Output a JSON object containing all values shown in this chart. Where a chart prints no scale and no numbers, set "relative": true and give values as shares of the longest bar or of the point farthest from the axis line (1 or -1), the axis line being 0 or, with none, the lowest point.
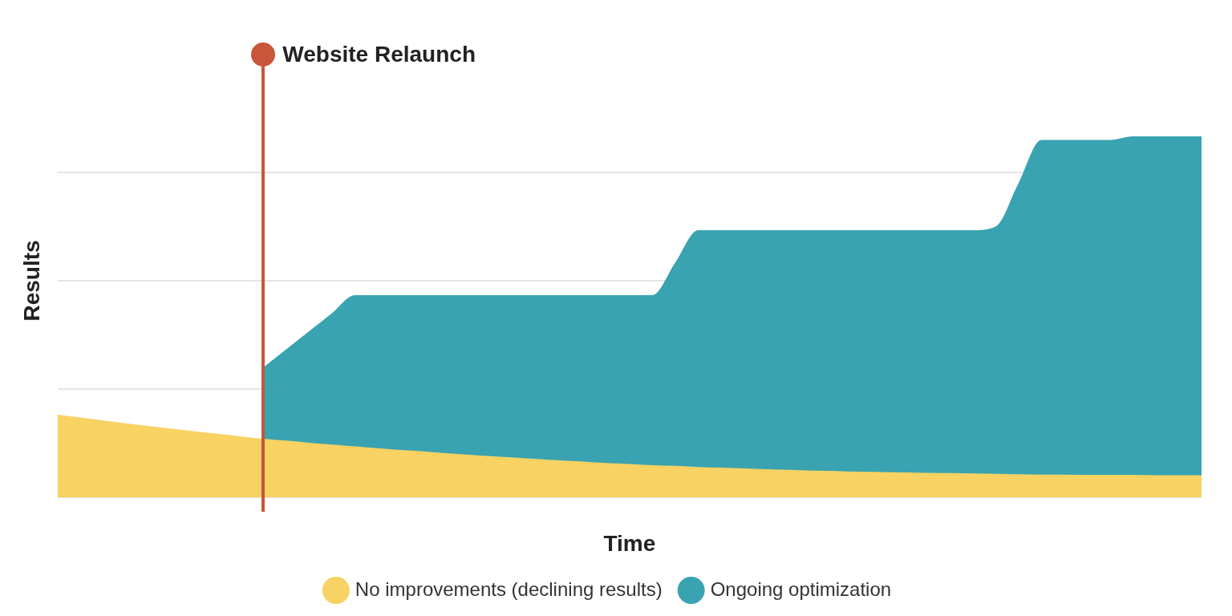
{
  "chart_data": {
    "type": "area",
    "xlabel": "Time",
    "ylabel": "Results",
    "relative": true,
    "grid": "y",
    "legend": "bottom",
    "categories": [
      null,
      null,
      null,
      null,
      null,
      null,
      null,
      null,
      null,
      null,
      null,
      null,
      null,
      null,
      null,
      null,
      null,
      null,
      null,
      null,
      null,
      null,
      null,
      null,
      null,
      null,
      null,
      null,
      null,
      null,
      null,
      null,
      null,
      null,
      null,
      null,
      null,
      null,
      null,
      null,
      null,
      null,
      null,
      null,
      null,
      null,
      null,
      null,
      null,
      null,
      null
    ],
    "series": [
      {
        "name": "No improvements (declining results)",
        "color": "#f8d262",
        "values": [
          0.229,
          0.221,
          0.213,
          0.205,
          0.197,
          0.19,
          0.183,
          0.176,
          0.169,
          0.162,
          0.157,
          0.151,
          0.146,
          0.141,
          0.136,
          0.131,
          0.127,
          0.122,
          0.118,
          0.114,
          0.11,
          0.106,
          0.102,
          0.099,
          0.095,
          0.092,
          0.089,
          0.087,
          0.084,
          0.082,
          0.08,
          0.078,
          0.076,
          0.074,
          0.073,
          0.071,
          0.07,
          0.069,
          0.068,
          0.067,
          0.066,
          0.065,
          0.064,
          0.063,
          0.063,
          0.062,
          0.062,
          0.062,
          0.061,
          0.061,
          0.061
        ]
      },
      {
        "name": "Ongoing optimization",
        "color": "#39a3b1",
        "values": [
          null,
          null,
          null,
          null,
          null,
          null,
          null,
          null,
          null,
          0.36,
          0.41,
          0.46,
          0.51,
          0.56,
          0.56,
          0.56,
          0.56,
          0.56,
          0.56,
          0.56,
          0.56,
          0.56,
          0.56,
          0.56,
          0.56,
          0.56,
          0.56,
          0.65,
          0.74,
          0.74,
          0.74,
          0.74,
          0.74,
          0.74,
          0.74,
          0.74,
          0.74,
          0.74,
          0.74,
          0.74,
          0.74,
          0.75,
          0.87,
          0.99,
          0.99,
          0.99,
          0.99,
          1.0,
          1.0,
          1.0,
          1.0
        ]
      }
    ],
    "annotations": [
      "Website Relaunch"
    ]
  }
}
